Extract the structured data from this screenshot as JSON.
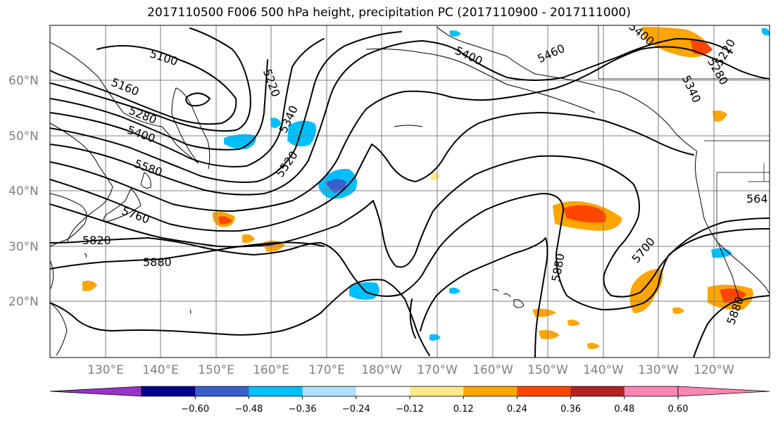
{
  "title": "2017110500 F006 500 hPa height, precipitation PC (2017110900 - 2017111000)",
  "lat_labels": [
    "60°N",
    "50°N",
    "40°N",
    "30°N",
    "20°N"
  ],
  "lon_labels": [
    "130°E",
    "140°E",
    "150°E",
    "160°E",
    "170°E",
    "180°W",
    "170°W",
    "160°W",
    "150°W",
    "140°W",
    "130°W",
    "120°W"
  ],
  "contour_labels": [
    "5100",
    "5160",
    "5280",
    "5400",
    "5580",
    "5760",
    "5820",
    "5880",
    "5220",
    "5340",
    "5520",
    "5400",
    "5460",
    "5400",
    "5220",
    "5280",
    "5340",
    "564",
    "5700",
    "5880",
    "5880"
  ],
  "colorbar": {
    "ticks": [
      "−0.60",
      "−0.48",
      "−0.36",
      "−0.24",
      "−0.12",
      "0.12",
      "0.24",
      "0.36",
      "0.48",
      "0.60"
    ],
    "colors": [
      "#9932cc",
      "#00008b",
      "#3a5fcd",
      "#00bfff",
      "#b0e0ff",
      "#ffffff",
      "#ffe98a",
      "#ffa500",
      "#ff4500",
      "#b22222",
      "#ff85b3",
      "#ff85b3"
    ]
  }
}
